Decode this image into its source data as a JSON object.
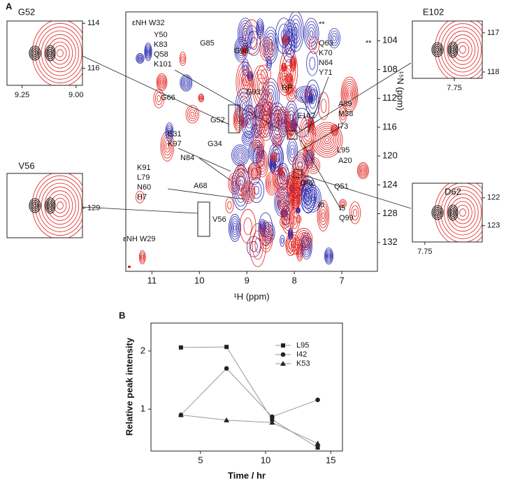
{
  "chart_data": [
    {
      "type": "contour",
      "panel": "A",
      "xlabel": "¹H (ppm)",
      "ylabel": "¹⁵N (ppm)",
      "xlim": [
        11.55,
        6.25
      ],
      "xticks": [
        11,
        10,
        9,
        8,
        7
      ],
      "ylim": [
        136,
        100
      ],
      "yticks": [
        104,
        108,
        112,
        116,
        120,
        124,
        128,
        132
      ],
      "colors": [
        "#e0201b",
        "#2b2bb0"
      ],
      "annotations": [
        [
          "εNH W32"
        ],
        [
          "G85"
        ],
        [
          "G98"
        ],
        [
          "Y50",
          "K83",
          "Q58",
          "K101"
        ],
        [
          "Q63",
          "K70",
          "N64",
          "Y71"
        ],
        [
          "RP"
        ],
        [
          "G93"
        ],
        [
          "G66"
        ],
        [
          "A89",
          "M38"
        ],
        [
          "G52"
        ],
        [
          "E102"
        ],
        [
          "I73"
        ],
        [
          "G34"
        ],
        [
          "E31",
          "K97"
        ],
        [
          "L95"
        ],
        [
          "A20"
        ],
        [
          "N84"
        ],
        [
          "K91",
          "L79",
          "N60",
          "H7"
        ],
        [
          "D62"
        ],
        [
          "Q51"
        ],
        [
          "A68"
        ],
        [
          "I6"
        ],
        [
          "I5",
          "Q99"
        ],
        [
          "V56"
        ],
        [
          "εNH W29"
        ],
        [
          "**"
        ],
        [
          "**"
        ]
      ]
    },
    {
      "type": "contour",
      "title": "G52",
      "xlim": [
        9.32,
        8.97
      ],
      "xticks": [
        9.25,
        {
          "value": 9,
          "label": "9.00"
        }
      ],
      "ylim": [
        116.75,
        113.9
      ],
      "yticks": [
        114,
        116
      ]
    },
    {
      "type": "contour",
      "title": "E102",
      "xlim": [
        7.87,
        7.67
      ],
      "xticks": [
        7.75
      ],
      "ylim": [
        118.16,
        116.7
      ],
      "yticks": [
        117,
        118
      ]
    },
    {
      "type": "contour",
      "title": "V56",
      "ylim": [
        130.2,
        127.6
      ],
      "yticks": [
        129
      ]
    },
    {
      "type": "contour",
      "title": "D62",
      "xlim": [
        7.8,
        7.52
      ],
      "xticks": [
        7.75
      ],
      "ylim": [
        123.58,
        121.48
      ],
      "yticks": [
        122,
        123
      ]
    },
    {
      "type": "line",
      "panel": "B",
      "xlabel": "Time / hr",
      "ylabel": "Relative peak intensity",
      "x": [
        3.5,
        7,
        10.5,
        14
      ],
      "xlim": [
        1.2,
        15.9
      ],
      "xticks": [
        5,
        10,
        15
      ],
      "ylim": [
        0.28,
        2.48
      ],
      "yticks": [
        1,
        2
      ],
      "legend": "upper right",
      "series": [
        {
          "name": "L95",
          "color": "#222222",
          "marker": "square",
          "values": [
            2.06,
            2.07,
            0.82,
            0.34
          ]
        },
        {
          "name": "I42",
          "color": "#222222",
          "marker": "circle",
          "values": [
            0.9,
            1.7,
            0.87,
            1.16
          ]
        },
        {
          "name": "K53",
          "color": "#222222",
          "marker": "triangle",
          "values": [
            0.9,
            0.81,
            0.77,
            0.41
          ]
        }
      ]
    }
  ]
}
